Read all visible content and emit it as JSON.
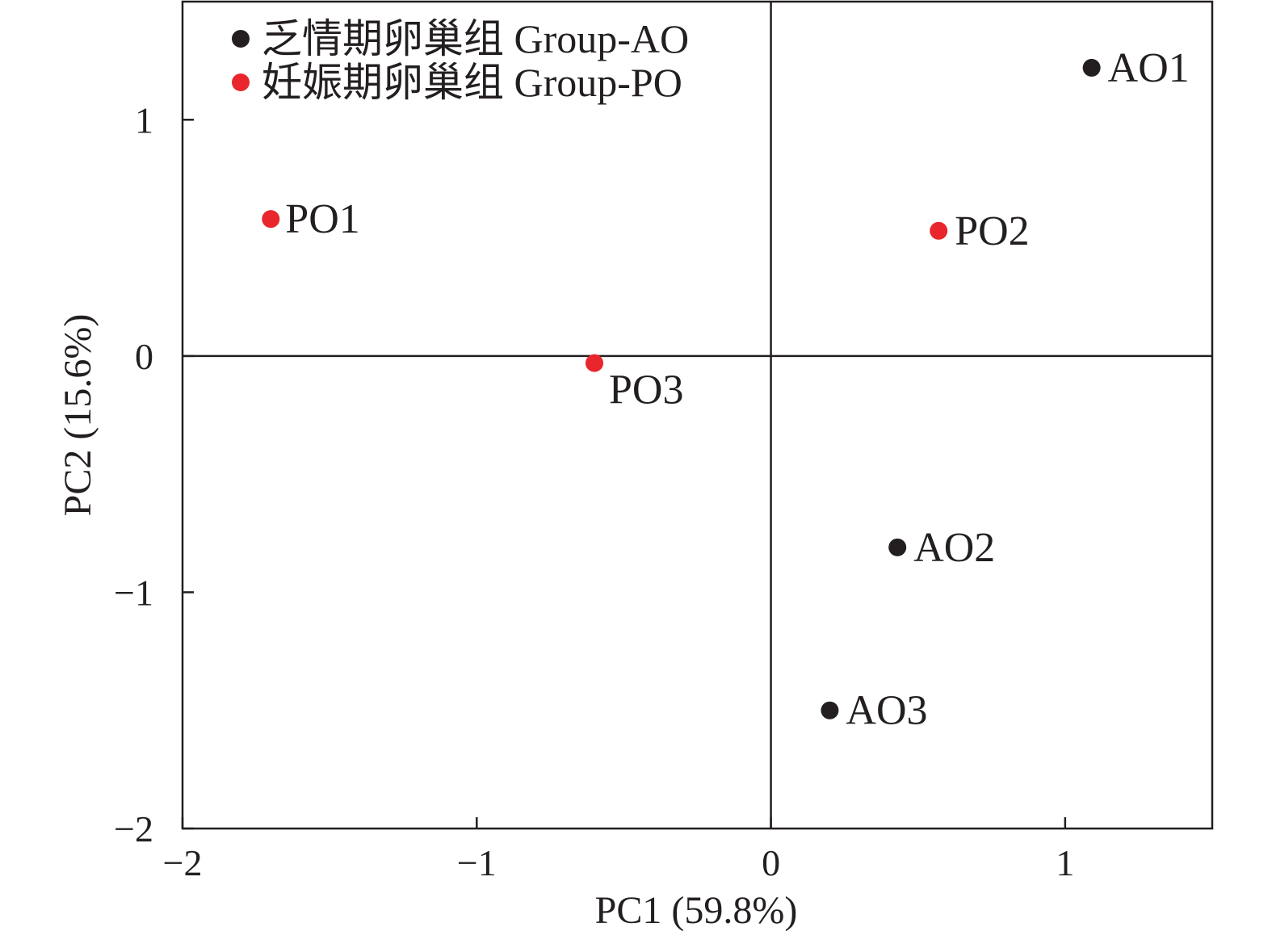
{
  "chart_data": {
    "type": "scatter",
    "title": "",
    "xlabel": "PC1 (59.8%)",
    "ylabel": "PC2 (15.6%)",
    "xlim": [
      -2,
      1.5
    ],
    "ylim": [
      -2,
      1.5
    ],
    "x_ticks": [
      -2,
      -1,
      0,
      1
    ],
    "y_ticks": [
      -2,
      -1,
      0,
      1
    ],
    "x_tick_labels": [
      "−2",
      "−1",
      "0",
      "1"
    ],
    "y_tick_labels": [
      "−2",
      "−1",
      "0",
      "1"
    ],
    "reference_lines": {
      "x": 0,
      "y": 0
    },
    "legend_position": "top-left",
    "series": [
      {
        "name": "乏情期卵巢组 Group-AO",
        "color": "#231f20",
        "points": [
          {
            "label": "AO1",
            "x": 1.09,
            "y": 1.22
          },
          {
            "label": "AO2",
            "x": 0.43,
            "y": -0.81
          },
          {
            "label": "AO3",
            "x": 0.2,
            "y": -1.5
          }
        ]
      },
      {
        "name": "妊娠期卵巢组 Group-PO",
        "color": "#e8262c",
        "points": [
          {
            "label": "PO1",
            "x": -1.7,
            "y": 0.58
          },
          {
            "label": "PO2",
            "x": 0.57,
            "y": 0.53
          },
          {
            "label": "PO3",
            "x": -0.6,
            "y": -0.03
          }
        ]
      }
    ]
  }
}
